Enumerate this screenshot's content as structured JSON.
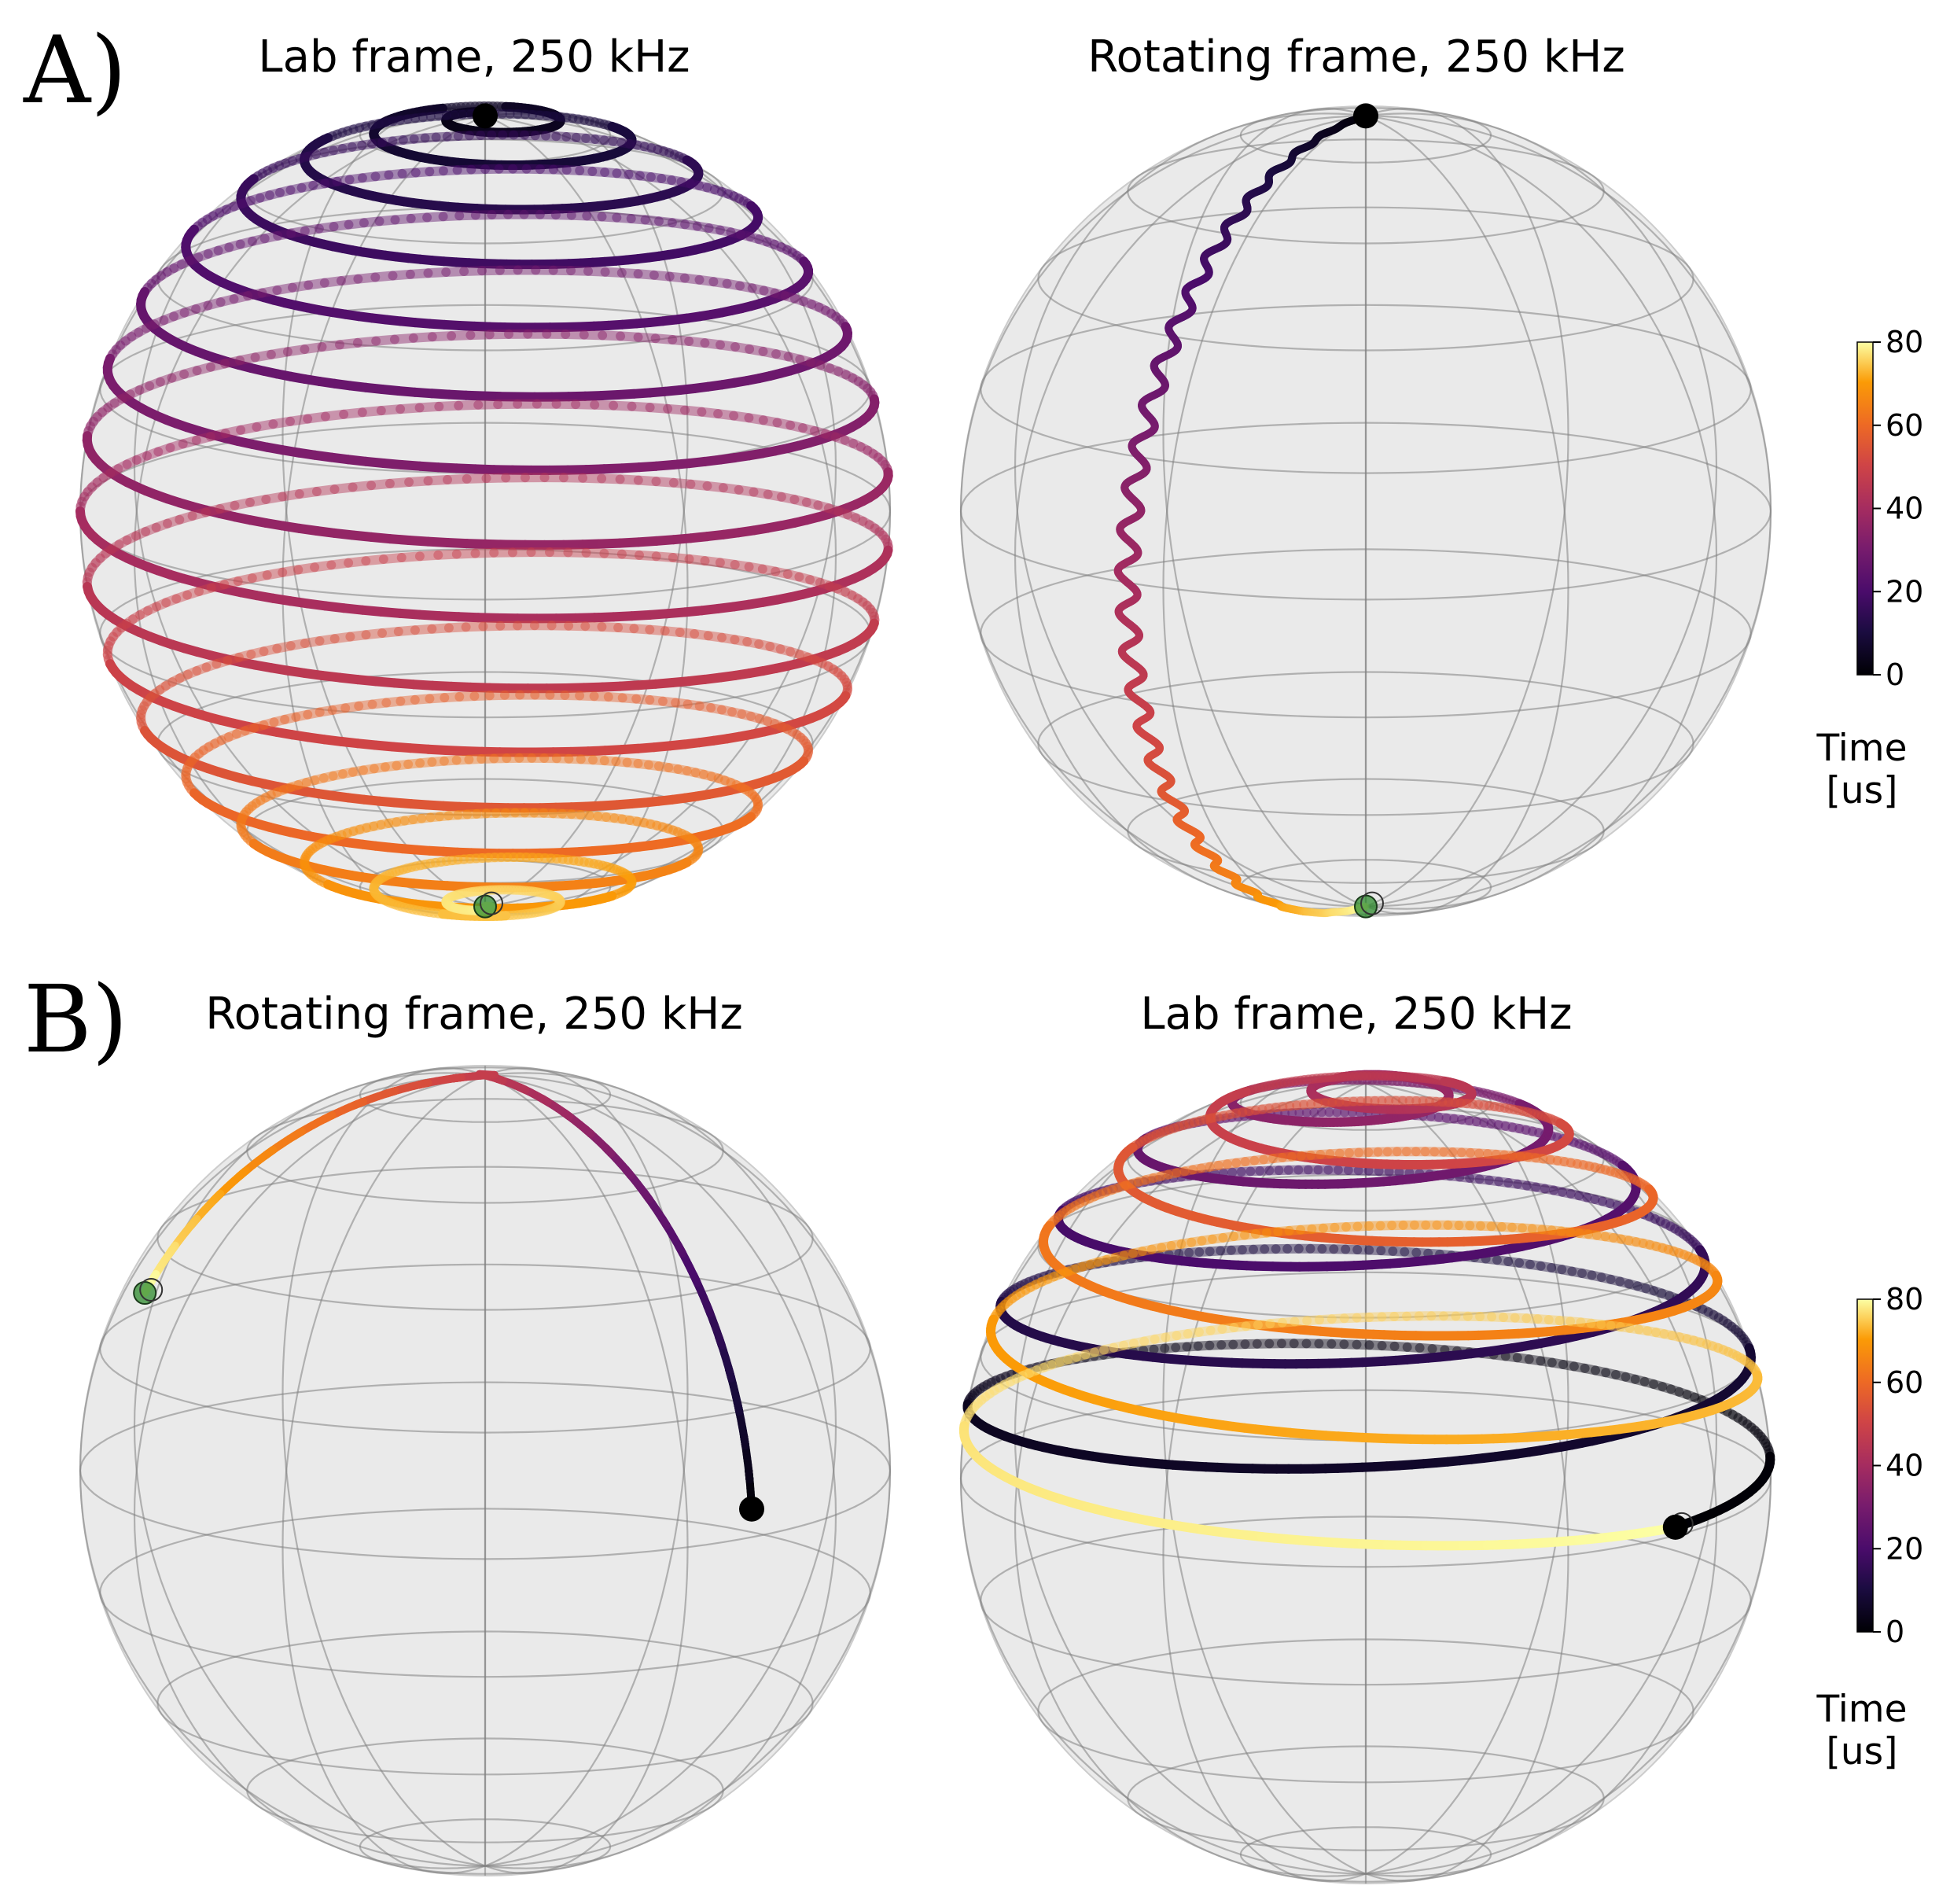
{
  "panels": [
    {
      "letter": "A)",
      "left_title": "Lab frame, 250 kHz",
      "right_title": "Rotating frame, 250 kHz"
    },
    {
      "letter": "B)",
      "left_title": "Rotating frame, 250 kHz",
      "right_title": "Lab frame, 250 kHz"
    }
  ],
  "colorbar": {
    "label_line1": "Time",
    "label_line2": "[us]",
    "ticks": [
      "0",
      "20",
      "40",
      "60",
      "80"
    ],
    "range": [
      0,
      80
    ],
    "colormap": "inferno"
  },
  "colors": {
    "sphere_fill": "#e6e6e6",
    "wire": "#808080",
    "start_marker": "#000000",
    "end_marker": "#2e8b2e"
  },
  "chart_data": [
    {
      "type": "scatter",
      "title": "Lab frame, 250 kHz",
      "representation": "Bloch sphere trajectory",
      "time_range_us": [
        0,
        80
      ],
      "start": "north pole",
      "end": "south pole",
      "turns": 17
    },
    {
      "type": "scatter",
      "title": "Rotating frame, 250 kHz",
      "representation": "Bloch sphere trajectory",
      "time_range_us": [
        0,
        80
      ],
      "start": "north pole",
      "end": "south pole"
    },
    {
      "type": "scatter",
      "title": "Rotating frame, 250 kHz",
      "representation": "Bloch sphere trajectory",
      "time_range_us": [
        0,
        80
      ],
      "start": "equator (front-right)",
      "end": "upper-left, past north pole"
    },
    {
      "type": "scatter",
      "title": "Lab frame, 250 kHz",
      "representation": "Bloch sphere trajectory",
      "time_range_us": [
        0,
        80
      ],
      "start": "equator (front-right)",
      "end": "left limb below equator",
      "turns": 11
    }
  ]
}
